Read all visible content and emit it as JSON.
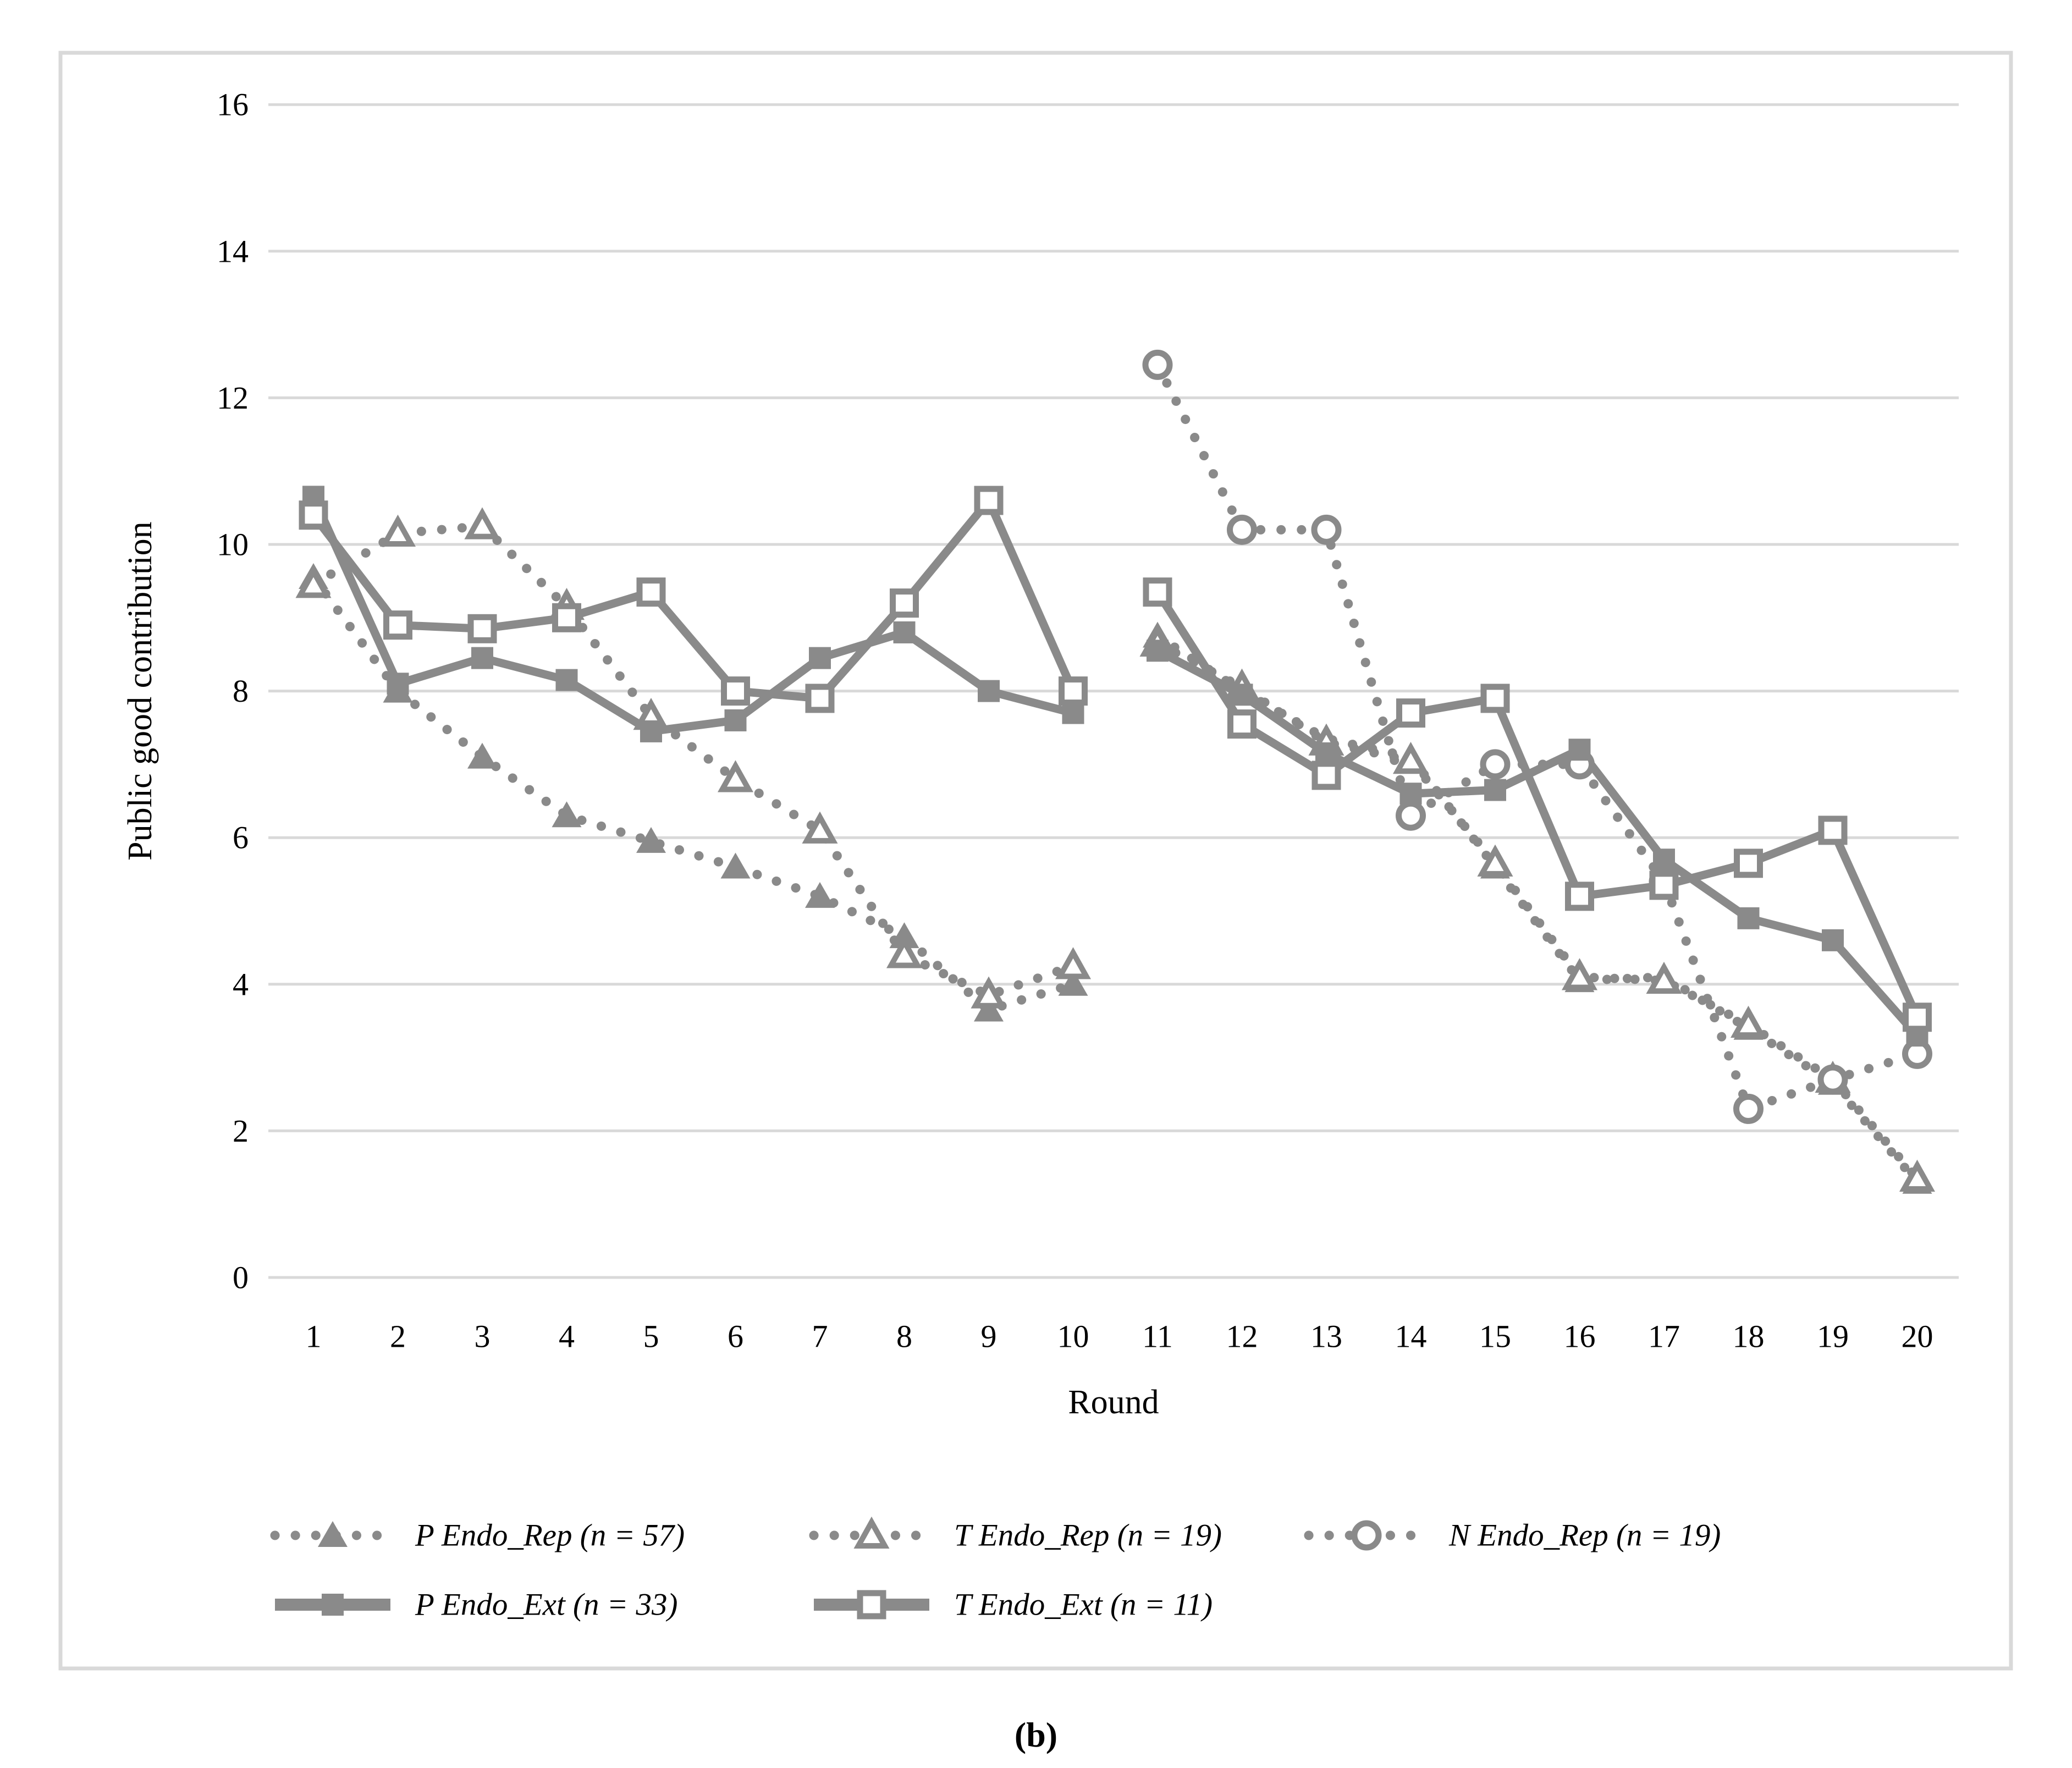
{
  "caption": "(b)",
  "panel": {
    "border_color": "#d9d9d9",
    "background": "#ffffff"
  },
  "chart_data": {
    "type": "line",
    "title": "",
    "xlabel": "Round",
    "ylabel": "Public good contribution",
    "xlim": [
      0.5,
      20.5
    ],
    "ylim": [
      0,
      16
    ],
    "grid": "horizontal",
    "gridline_color": "#d9d9d9",
    "series_color": "#8a8a8a",
    "x_ticks": [
      "1",
      "2",
      "3",
      "4",
      "5",
      "6",
      "7",
      "8",
      "9",
      "10",
      "11",
      "12",
      "13",
      "14",
      "15",
      "16",
      "17",
      "18",
      "19",
      "20"
    ],
    "y_ticks": [
      "0",
      "2",
      "4",
      "6",
      "8",
      "10",
      "12",
      "14",
      "16"
    ],
    "x": [
      1,
      2,
      3,
      4,
      5,
      6,
      7,
      8,
      9,
      10,
      11,
      12,
      13,
      14,
      15,
      16,
      17,
      18,
      19,
      20
    ],
    "gap_after_round": 10,
    "series": [
      {
        "name": "P Endo_Rep",
        "legend_label": "P Endo_Rep (n = 57)",
        "line": "dotted",
        "marker": "triangle-filled",
        "values": [
          9.55,
          8.0,
          7.1,
          6.3,
          5.95,
          5.6,
          5.2,
          4.65,
          3.65,
          4.0,
          8.75,
          8.0,
          7.35,
          7.1,
          5.6,
          4.05,
          4.1,
          3.4,
          2.65,
          1.3
        ]
      },
      {
        "name": "T Endo_Rep",
        "legend_label": "T Endo_Rep (n = 19)",
        "line": "dotted",
        "marker": "triangle-open",
        "values": [
          9.45,
          10.15,
          10.25,
          9.15,
          7.65,
          6.8,
          6.1,
          4.4,
          3.85,
          4.25,
          8.65,
          8.05,
          7.3,
          7.05,
          5.65,
          4.1,
          4.05,
          3.45,
          2.7,
          1.35
        ]
      },
      {
        "name": "N Endo_Rep",
        "legend_label": "N Endo_Rep (n = 19)",
        "line": "dotted",
        "marker": "circle-open",
        "values": [
          null,
          null,
          null,
          null,
          null,
          null,
          null,
          null,
          null,
          null,
          12.45,
          10.2,
          10.2,
          6.3,
          7.0,
          7.0,
          5.4,
          2.3,
          2.7,
          3.05
        ]
      },
      {
        "name": "P Endo_Ext",
        "legend_label": "P Endo_Ext (n = 33)",
        "line": "solid",
        "marker": "square-filled",
        "values": [
          10.65,
          8.1,
          8.45,
          8.15,
          7.45,
          7.6,
          8.45,
          8.8,
          8.0,
          7.7,
          8.55,
          7.95,
          7.15,
          6.6,
          6.65,
          7.2,
          5.7,
          4.9,
          4.6,
          3.3
        ]
      },
      {
        "name": "T Endo_Ext",
        "legend_label": "T Endo_Ext (n = 11)",
        "line": "solid",
        "marker": "square-open",
        "values": [
          10.4,
          8.9,
          8.85,
          9.0,
          9.35,
          8.0,
          7.9,
          9.2,
          10.6,
          8.0,
          9.35,
          7.55,
          6.85,
          7.7,
          7.9,
          5.2,
          5.35,
          5.65,
          6.1,
          3.55
        ]
      }
    ],
    "legend_position": "bottom",
    "legend_rows": [
      [
        0,
        1,
        2
      ],
      [
        3,
        4
      ]
    ]
  }
}
